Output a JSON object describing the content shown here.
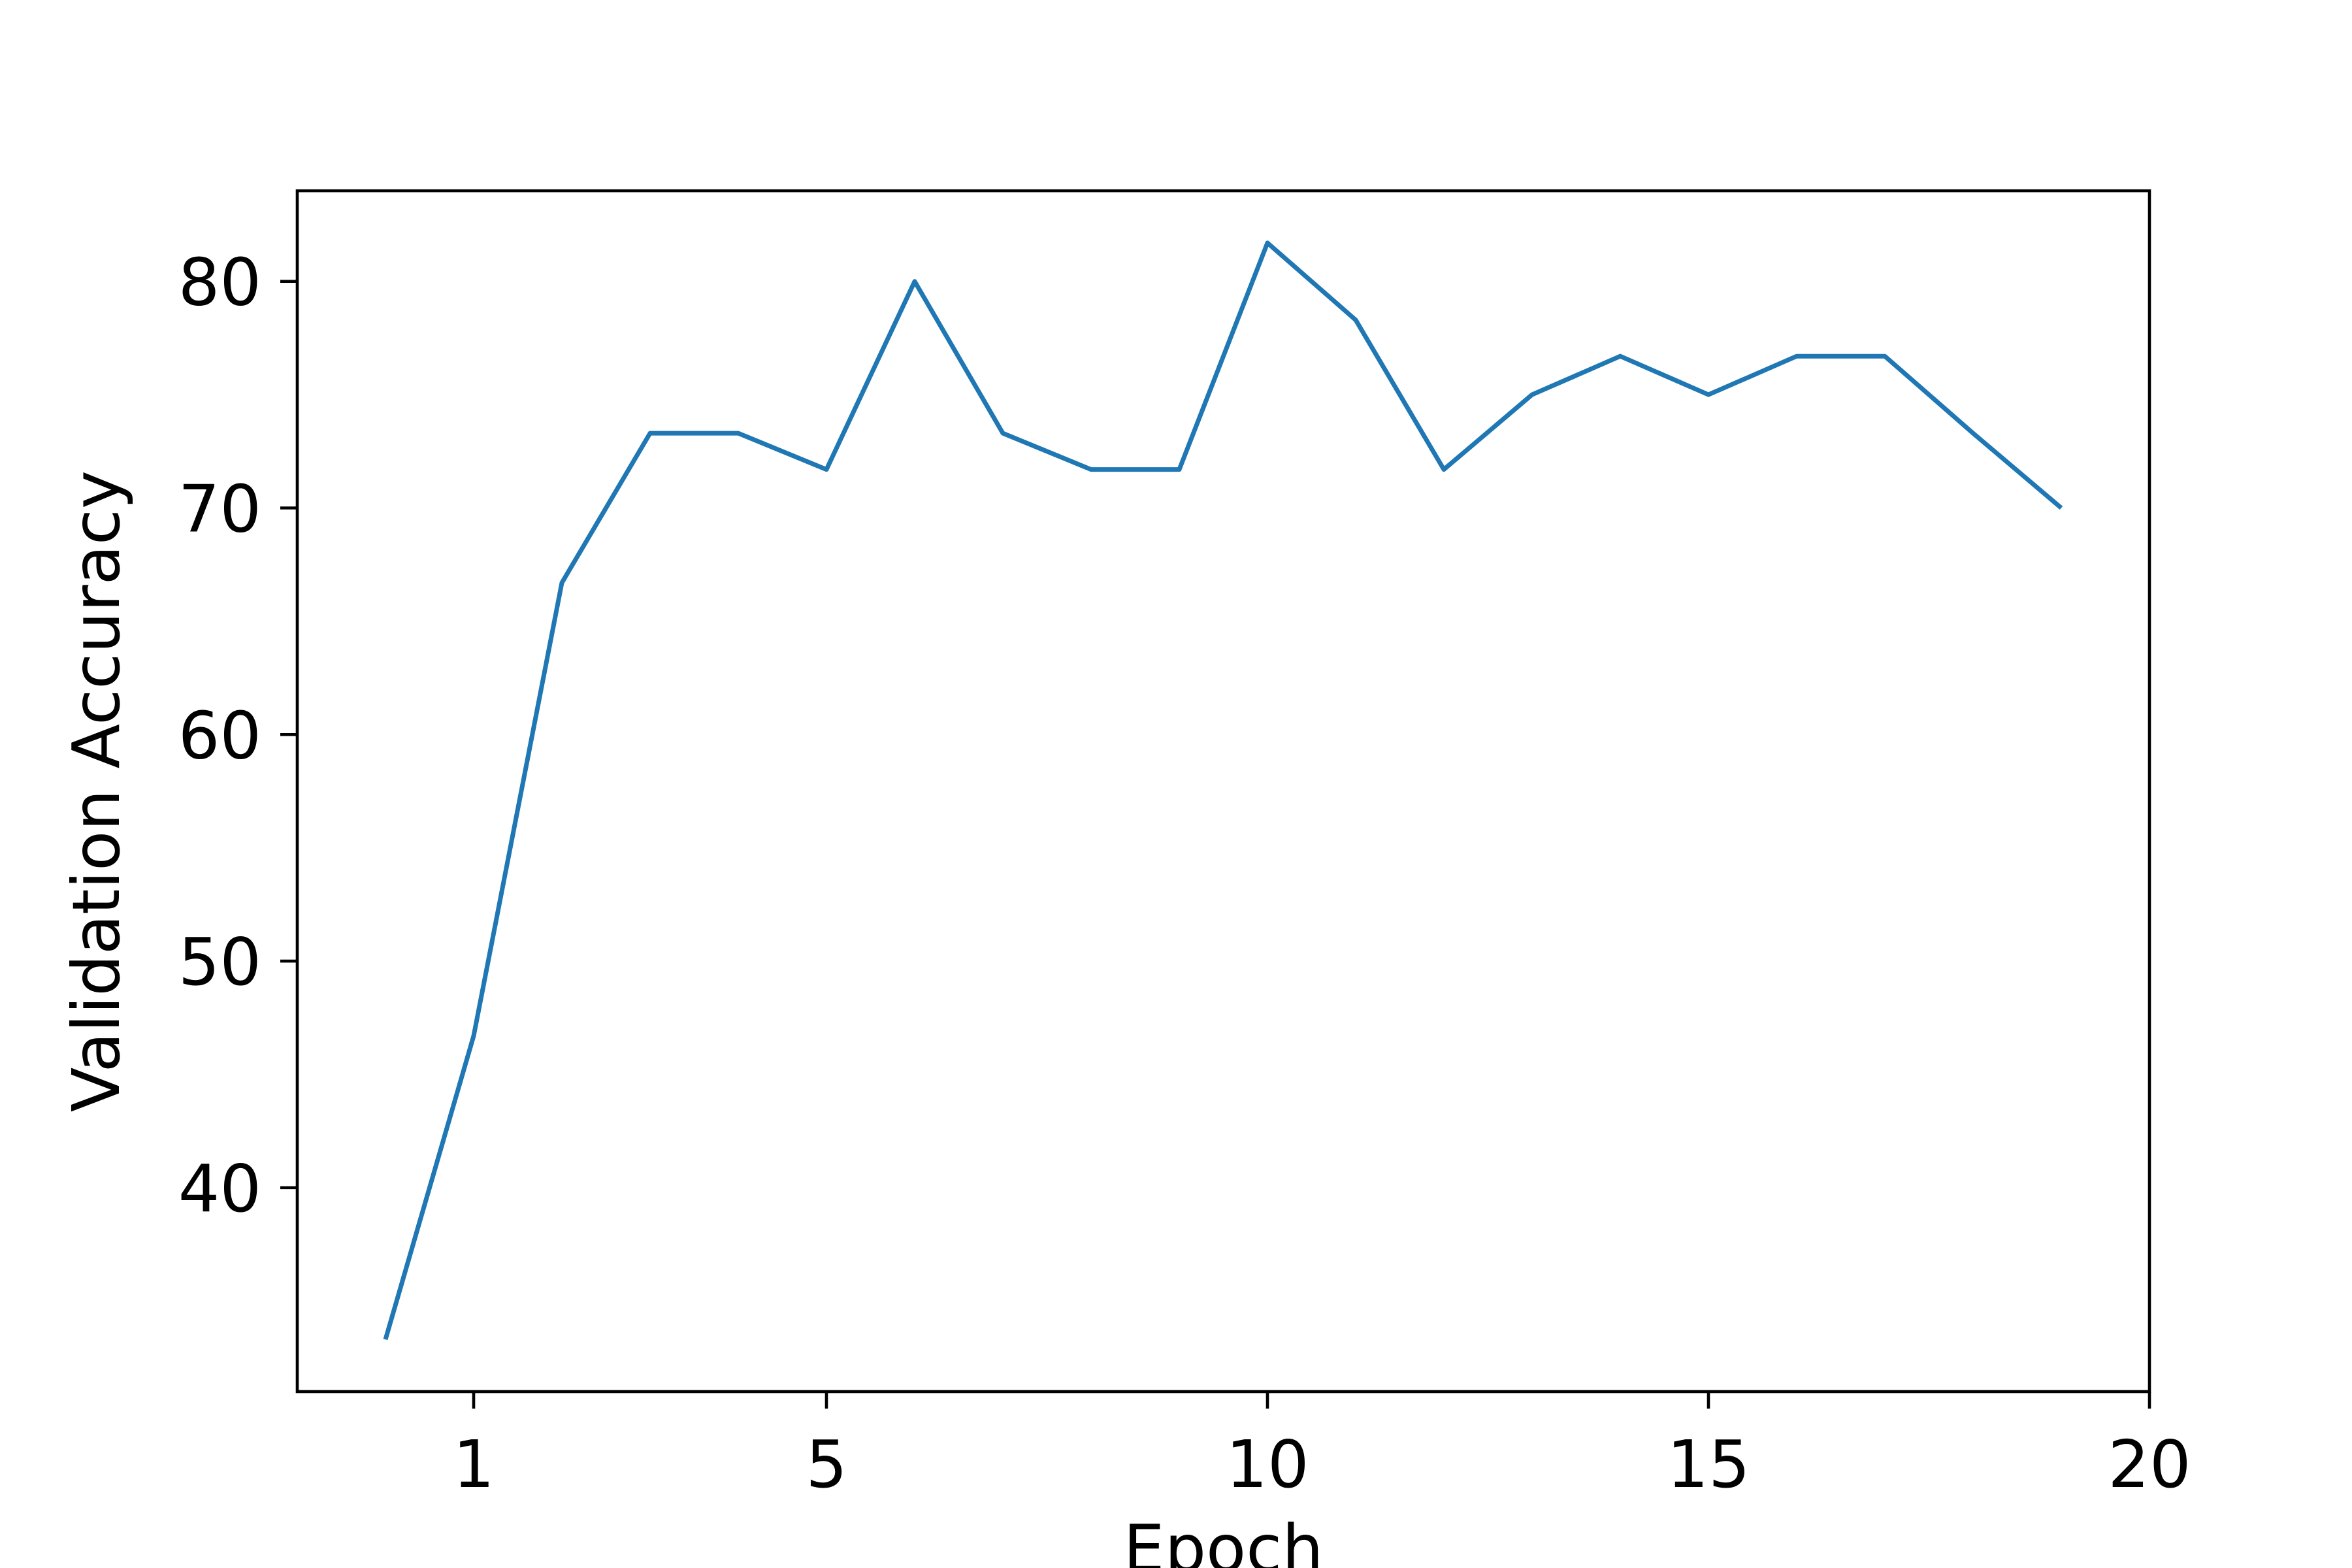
{
  "chart_data": {
    "type": "line",
    "title": "",
    "xlabel": "Epoch",
    "ylabel": "Validation Accuracy",
    "xlim": [
      -1,
      20
    ],
    "ylim": [
      31,
      84
    ],
    "xticks": [
      1,
      5,
      10,
      15,
      20
    ],
    "yticks": [
      40,
      50,
      60,
      70,
      80
    ],
    "grid": false,
    "series": [
      {
        "color": "#1f77b4",
        "x": [
          0,
          1,
          2,
          3,
          4,
          5,
          6,
          7,
          8,
          9,
          10,
          11,
          12,
          13,
          14,
          15,
          16,
          17,
          18,
          19
        ],
        "y": [
          33.3,
          46.7,
          66.7,
          73.3,
          73.3,
          71.7,
          80.0,
          73.3,
          71.7,
          71.7,
          81.7,
          78.3,
          71.7,
          75.0,
          76.7,
          75.0,
          76.7,
          76.7,
          73.3,
          70.0
        ]
      }
    ]
  }
}
